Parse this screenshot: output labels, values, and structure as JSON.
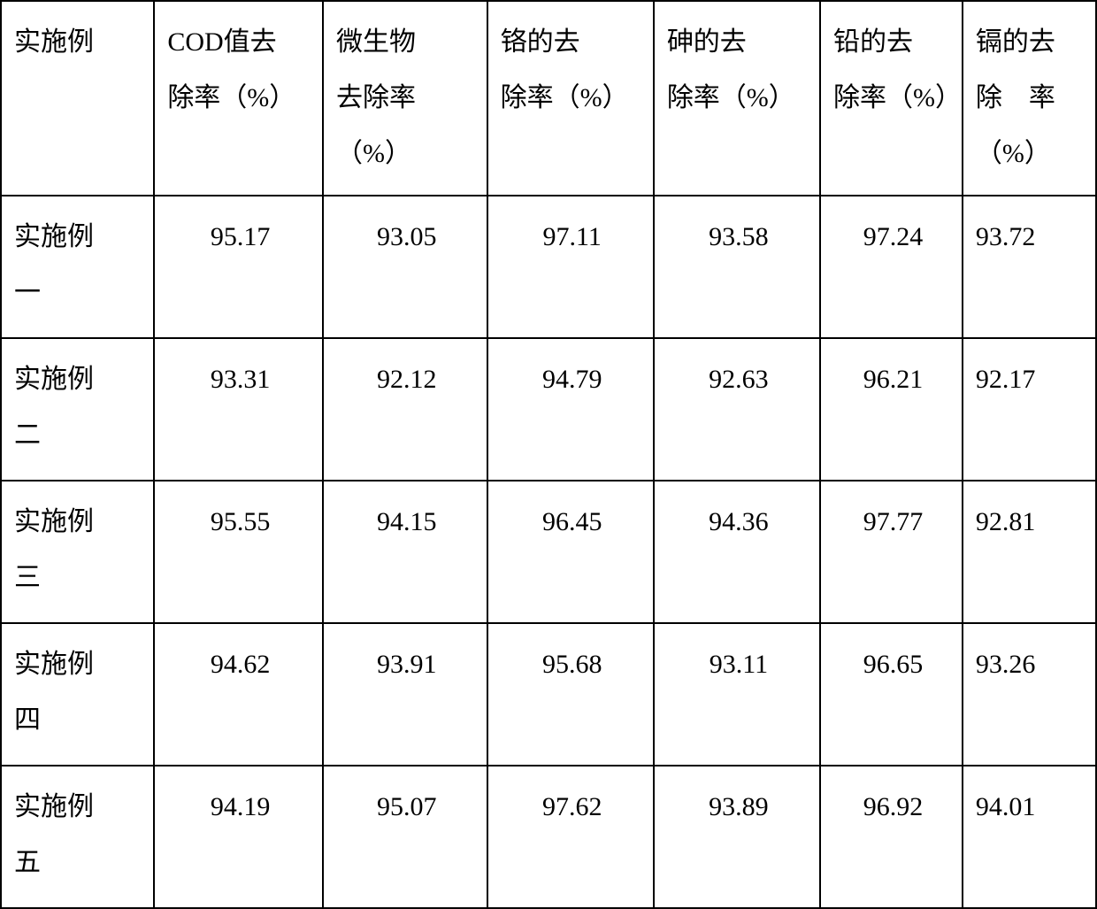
{
  "table": {
    "type": "table",
    "border_color": "#000000",
    "background_color": "#ffffff",
    "text_color": "#000000",
    "font_family": "SimSun",
    "font_size_pt": 22,
    "columns": [
      {
        "key": "example",
        "label": "实施例",
        "width_pct": 14.0,
        "align": "left"
      },
      {
        "key": "cod",
        "label": "COD值去除率（%）",
        "width_pct": 15.4,
        "align": "center"
      },
      {
        "key": "microbe",
        "label": "微生物去除率（%）",
        "width_pct": 15.0,
        "align": "center"
      },
      {
        "key": "cr",
        "label": "铬的去除率（%）",
        "width_pct": 15.2,
        "align": "center"
      },
      {
        "key": "as",
        "label": "砷的去除率（%）",
        "width_pct": 15.2,
        "align": "center"
      },
      {
        "key": "pb",
        "label": "铅的去除率（%）",
        "width_pct": 13.0,
        "align": "center"
      },
      {
        "key": "cd",
        "label": "镉的去除　率（%）",
        "width_pct": 12.2,
        "align": "left"
      }
    ],
    "header_lines": {
      "c0": [
        "实施例"
      ],
      "c1": [
        "COD值去",
        "除率（%）"
      ],
      "c2": [
        "微生物",
        "去除率",
        "（%）"
      ],
      "c3": [
        "铬的去",
        "除率（%）"
      ],
      "c4": [
        "砷的去",
        "除率（%）"
      ],
      "c5": [
        "铅的去",
        "除率（%）"
      ],
      "c6": [
        "镉的去",
        "除　率",
        "（%）"
      ]
    },
    "rows": [
      {
        "label_lines": [
          "实施例",
          "一"
        ],
        "label": "实施例一",
        "values": [
          "95.17",
          "93.05",
          "97.11",
          "93.58",
          "97.24",
          "93.72"
        ]
      },
      {
        "label_lines": [
          "实施例",
          "二"
        ],
        "label": "实施例二",
        "values": [
          "93.31",
          "92.12",
          "94.79",
          "92.63",
          "96.21",
          "92.17"
        ]
      },
      {
        "label_lines": [
          "实施例",
          "三"
        ],
        "label": "实施例三",
        "values": [
          "95.55",
          "94.15",
          "96.45",
          "94.36",
          "97.77",
          "92.81"
        ]
      },
      {
        "label_lines": [
          "实施例",
          "四"
        ],
        "label": "实施例四",
        "values": [
          "94.62",
          "93.91",
          "95.68",
          "93.11",
          "96.65",
          "93.26"
        ]
      },
      {
        "label_lines": [
          "实施例",
          "五"
        ],
        "label": "实施例五",
        "values": [
          "94.19",
          "95.07",
          "97.62",
          "93.89",
          "96.92",
          "94.01"
        ]
      }
    ]
  }
}
